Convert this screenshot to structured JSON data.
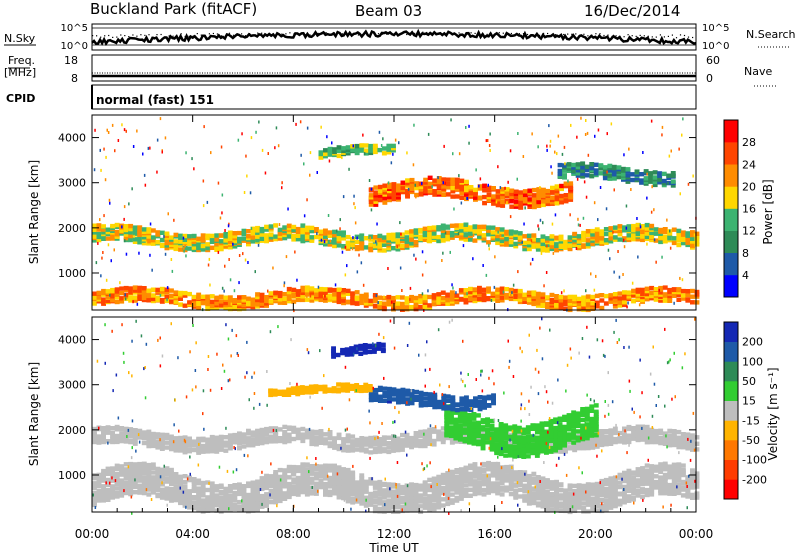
{
  "header": {
    "station": "Buckland Park (fitACF)",
    "beam": "Beam 03",
    "date": "16/Dec/2014"
  },
  "noise_panel": {
    "left_label": "N.Sky",
    "right_label": "N.Search",
    "ticks_left": [
      "10^5",
      "10^0"
    ],
    "ticks_right": [
      "10^5",
      "10^0"
    ]
  },
  "freq_panel": {
    "left_label_top": "Freq.",
    "left_label_unit": "[MHz]",
    "right_label": "Nave",
    "ticks_left": [
      "18",
      "8"
    ],
    "ticks_right": [
      "60",
      "0"
    ]
  },
  "cpid": {
    "label": "CPID",
    "value": "normal (fast) 151"
  },
  "colors": {
    "power_scale": [
      "#0000ff",
      "#1e5aa8",
      "#2e8b57",
      "#3cb371",
      "#ffd700",
      "#ff8c00",
      "#ff4500",
      "#ff0000"
    ],
    "velocity_scale": [
      "#1428b4",
      "#1e5aa8",
      "#2e8b57",
      "#32cd32",
      "#bebebe",
      "#ffb400",
      "#ff7800",
      "#ff3c00",
      "#ff0000"
    ]
  },
  "chart_data": [
    {
      "type": "heatmap",
      "panel": "power",
      "ylabel": "Slant Range [km]",
      "xlabel": "",
      "xlim": [
        "00:00",
        "24:00"
      ],
      "ylim": [
        180,
        4500
      ],
      "y_ticks": [
        "1000",
        "2000",
        "3000",
        "4000"
      ],
      "colorbar": {
        "label": "Power [dB]",
        "ticks": [
          "4",
          "8",
          "12",
          "16",
          "20",
          "24",
          "28"
        ],
        "range": [
          0,
          32
        ]
      },
      "regions": [
        {
          "t_start": 0.0,
          "t_end": 24.0,
          "range_center": 450,
          "range_width": 300,
          "value": 22
        },
        {
          "t_start": 0.0,
          "t_end": 24.0,
          "range_center": 1800,
          "range_width": 350,
          "value": 18
        },
        {
          "t_start": 11.0,
          "t_end": 19.0,
          "range_center": 2800,
          "range_width": 400,
          "value": 24
        },
        {
          "t_start": 18.5,
          "t_end": 23.0,
          "range_center": 3200,
          "range_width": 300,
          "value": 10
        },
        {
          "t_start": 9.0,
          "t_end": 12.0,
          "range_center": 3700,
          "range_width": 200,
          "value": 14
        }
      ]
    },
    {
      "type": "heatmap",
      "panel": "velocity",
      "ylabel": "Slant Range [km]",
      "xlabel": "Time UT",
      "xlim": [
        "00:00",
        "24:00"
      ],
      "ylim": [
        180,
        4500
      ],
      "y_ticks": [
        "1000",
        "2000",
        "3000",
        "4000"
      ],
      "x_ticks": [
        "00:00",
        "04:00",
        "08:00",
        "12:00",
        "16:00",
        "20:00",
        "00:00"
      ],
      "colorbar": {
        "label": "Velocity [m s⁻¹]",
        "ticks": [
          "200",
          "100",
          "50",
          "15",
          "-15",
          "-50",
          "-100",
          "-200"
        ],
        "range": [
          -250,
          250
        ]
      },
      "regions": [
        {
          "t_start": 0.0,
          "t_end": 24.0,
          "range_center": 700,
          "range_width": 700,
          "value": 0
        },
        {
          "t_start": 0.0,
          "t_end": 24.0,
          "range_center": 1800,
          "range_width": 350,
          "value": 0
        },
        {
          "t_start": 14.0,
          "t_end": 20.0,
          "range_center": 2000,
          "range_width": 700,
          "value": 60
        },
        {
          "t_start": 9.5,
          "t_end": 11.5,
          "range_center": 3800,
          "range_width": 200,
          "value": 220
        },
        {
          "t_start": 11.0,
          "t_end": 16.0,
          "range_center": 2700,
          "range_width": 300,
          "value": 180
        },
        {
          "t_start": 7.0,
          "t_end": 11.0,
          "range_center": 2900,
          "range_width": 150,
          "value": -50
        }
      ]
    }
  ]
}
